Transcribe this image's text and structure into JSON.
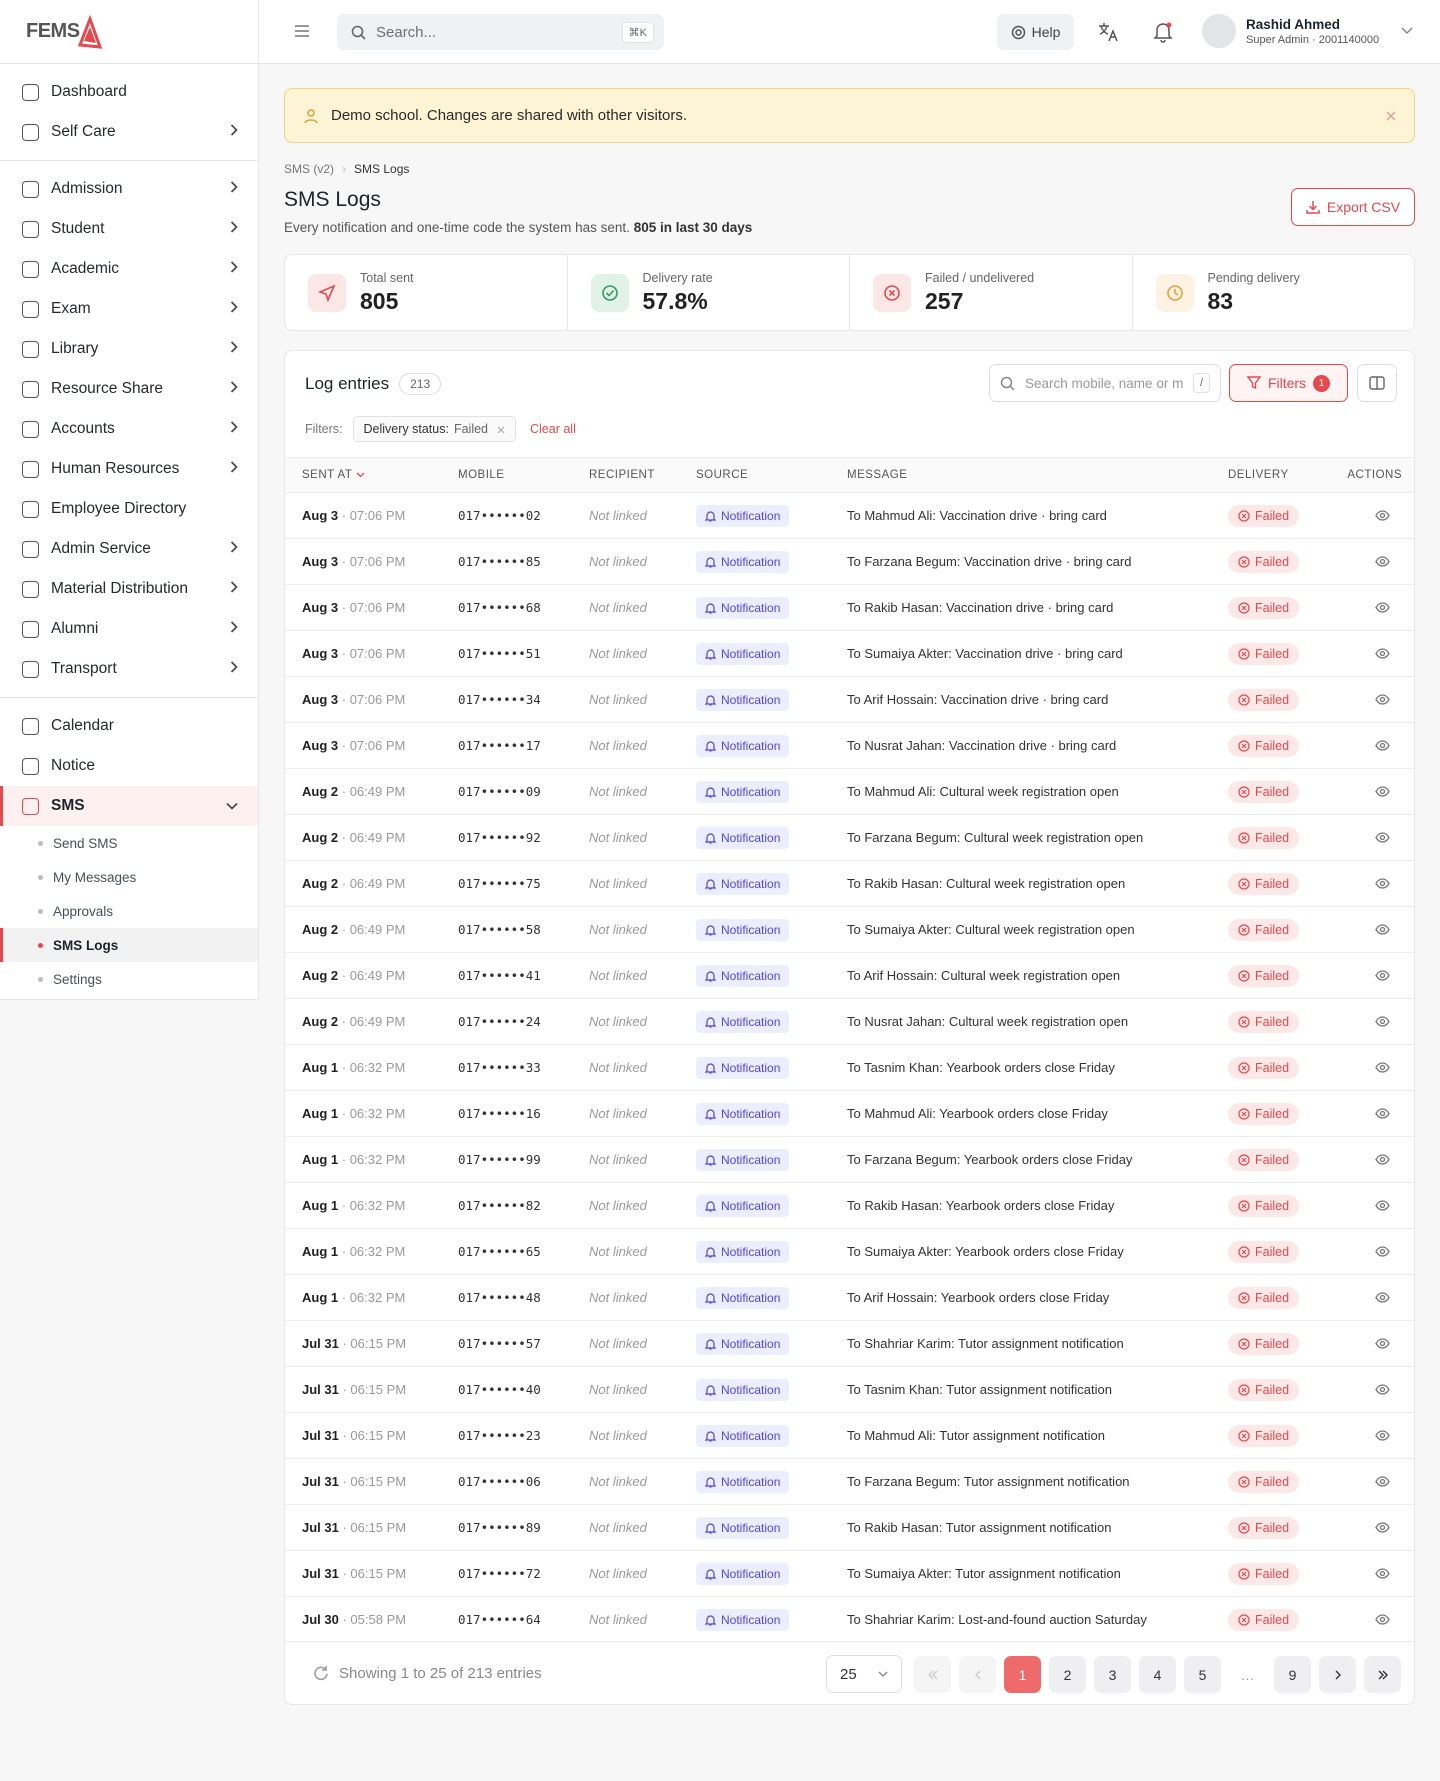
{
  "brand": "FEMS",
  "topbar": {
    "search_placeholder": "Search...",
    "search_shortcut": "⌘K",
    "help": "Help",
    "user_name": "Rashid Ahmed",
    "user_role": "Super Admin · 2001140000"
  },
  "sidebar": {
    "groups": [
      {
        "items": [
          {
            "label": "Dashboard",
            "expandable": false
          },
          {
            "label": "Self Care",
            "expandable": true
          }
        ]
      },
      {
        "items": [
          {
            "label": "Admission",
            "expandable": true
          },
          {
            "label": "Student",
            "expandable": true
          },
          {
            "label": "Academic",
            "expandable": true
          },
          {
            "label": "Exam",
            "expandable": true
          },
          {
            "label": "Library",
            "expandable": true
          },
          {
            "label": "Resource Share",
            "expandable": true
          },
          {
            "label": "Accounts",
            "expandable": true
          },
          {
            "label": "Human Resources",
            "expandable": true
          },
          {
            "label": "Employee Directory",
            "expandable": false
          },
          {
            "label": "Admin Service",
            "expandable": true
          },
          {
            "label": "Material Distribution",
            "expandable": true
          },
          {
            "label": "Alumni",
            "expandable": true
          },
          {
            "label": "Transport",
            "expandable": true
          }
        ]
      },
      {
        "items": [
          {
            "label": "Calendar",
            "expandable": false
          },
          {
            "label": "Notice",
            "expandable": false
          },
          {
            "label": "SMS",
            "expandable": true,
            "expanded": true,
            "active": true,
            "children": [
              {
                "label": "Send SMS",
                "active": false
              },
              {
                "label": "My Messages",
                "active": false
              },
              {
                "label": "Approvals",
                "active": false
              },
              {
                "label": "SMS Logs",
                "active": true
              },
              {
                "label": "Settings",
                "active": false
              }
            ]
          }
        ]
      }
    ]
  },
  "banner": "Demo school. Changes are shared with other visitors.",
  "breadcrumb": [
    "SMS (v2)",
    "SMS Logs"
  ],
  "header": {
    "title": "SMS Logs",
    "subtitle": "Every notification and one-time code the system has sent.",
    "subtitle_strong": "805 in last 30 days",
    "export": "Export CSV"
  },
  "stats": [
    {
      "label": "Total sent",
      "value": "805",
      "color": "#e5484d"
    },
    {
      "label": "Delivery rate",
      "value": "57.8%",
      "color": "#2f9e5b"
    },
    {
      "label": "Failed / undelivered",
      "value": "257",
      "color": "#e5484d"
    },
    {
      "label": "Pending delivery",
      "value": "83",
      "color": "#f0a030"
    }
  ],
  "log": {
    "title": "Log entries",
    "count": 213,
    "search_placeholder": "Search mobile, name or m",
    "search_shortcut": "/",
    "filters_button": "Filters",
    "filters_count": 1,
    "filters_label": "Filters:",
    "chip_key": "Delivery status:",
    "chip_value": "Failed",
    "clear": "Clear all",
    "columns": [
      "SENT AT",
      "MOBILE",
      "RECIPIENT",
      "SOURCE",
      "MESSAGE",
      "DELIVERY",
      "ACTIONS"
    ],
    "rows": [
      {
        "date": "Aug 3",
        "time": "07:06 PM",
        "mobile": "017••••••02",
        "recipient": "Not linked",
        "source": "Notification",
        "message": "To Mahmud Ali: Vaccination drive · bring card",
        "delivery": "Failed"
      },
      {
        "date": "Aug 3",
        "time": "07:06 PM",
        "mobile": "017••••••85",
        "recipient": "Not linked",
        "source": "Notification",
        "message": "To Farzana Begum: Vaccination drive · bring card",
        "delivery": "Failed"
      },
      {
        "date": "Aug 3",
        "time": "07:06 PM",
        "mobile": "017••••••68",
        "recipient": "Not linked",
        "source": "Notification",
        "message": "To Rakib Hasan: Vaccination drive · bring card",
        "delivery": "Failed"
      },
      {
        "date": "Aug 3",
        "time": "07:06 PM",
        "mobile": "017••••••51",
        "recipient": "Not linked",
        "source": "Notification",
        "message": "To Sumaiya Akter: Vaccination drive · bring card",
        "delivery": "Failed"
      },
      {
        "date": "Aug 3",
        "time": "07:06 PM",
        "mobile": "017••••••34",
        "recipient": "Not linked",
        "source": "Notification",
        "message": "To Arif Hossain: Vaccination drive · bring card",
        "delivery": "Failed"
      },
      {
        "date": "Aug 3",
        "time": "07:06 PM",
        "mobile": "017••••••17",
        "recipient": "Not linked",
        "source": "Notification",
        "message": "To Nusrat Jahan: Vaccination drive · bring card",
        "delivery": "Failed"
      },
      {
        "date": "Aug 2",
        "time": "06:49 PM",
        "mobile": "017••••••09",
        "recipient": "Not linked",
        "source": "Notification",
        "message": "To Mahmud Ali: Cultural week registration open",
        "delivery": "Failed"
      },
      {
        "date": "Aug 2",
        "time": "06:49 PM",
        "mobile": "017••••••92",
        "recipient": "Not linked",
        "source": "Notification",
        "message": "To Farzana Begum: Cultural week registration open",
        "delivery": "Failed"
      },
      {
        "date": "Aug 2",
        "time": "06:49 PM",
        "mobile": "017••••••75",
        "recipient": "Not linked",
        "source": "Notification",
        "message": "To Rakib Hasan: Cultural week registration open",
        "delivery": "Failed"
      },
      {
        "date": "Aug 2",
        "time": "06:49 PM",
        "mobile": "017••••••58",
        "recipient": "Not linked",
        "source": "Notification",
        "message": "To Sumaiya Akter: Cultural week registration open",
        "delivery": "Failed"
      },
      {
        "date": "Aug 2",
        "time": "06:49 PM",
        "mobile": "017••••••41",
        "recipient": "Not linked",
        "source": "Notification",
        "message": "To Arif Hossain: Cultural week registration open",
        "delivery": "Failed"
      },
      {
        "date": "Aug 2",
        "time": "06:49 PM",
        "mobile": "017••••••24",
        "recipient": "Not linked",
        "source": "Notification",
        "message": "To Nusrat Jahan: Cultural week registration open",
        "delivery": "Failed"
      },
      {
        "date": "Aug 1",
        "time": "06:32 PM",
        "mobile": "017••••••33",
        "recipient": "Not linked",
        "source": "Notification",
        "message": "To Tasnim Khan: Yearbook orders close Friday",
        "delivery": "Failed"
      },
      {
        "date": "Aug 1",
        "time": "06:32 PM",
        "mobile": "017••••••16",
        "recipient": "Not linked",
        "source": "Notification",
        "message": "To Mahmud Ali: Yearbook orders close Friday",
        "delivery": "Failed"
      },
      {
        "date": "Aug 1",
        "time": "06:32 PM",
        "mobile": "017••••••99",
        "recipient": "Not linked",
        "source": "Notification",
        "message": "To Farzana Begum: Yearbook orders close Friday",
        "delivery": "Failed"
      },
      {
        "date": "Aug 1",
        "time": "06:32 PM",
        "mobile": "017••••••82",
        "recipient": "Not linked",
        "source": "Notification",
        "message": "To Rakib Hasan: Yearbook orders close Friday",
        "delivery": "Failed"
      },
      {
        "date": "Aug 1",
        "time": "06:32 PM",
        "mobile": "017••••••65",
        "recipient": "Not linked",
        "source": "Notification",
        "message": "To Sumaiya Akter: Yearbook orders close Friday",
        "delivery": "Failed"
      },
      {
        "date": "Aug 1",
        "time": "06:32 PM",
        "mobile": "017••••••48",
        "recipient": "Not linked",
        "source": "Notification",
        "message": "To Arif Hossain: Yearbook orders close Friday",
        "delivery": "Failed"
      },
      {
        "date": "Jul 31",
        "time": "06:15 PM",
        "mobile": "017••••••57",
        "recipient": "Not linked",
        "source": "Notification",
        "message": "To Shahriar Karim: Tutor assignment notification",
        "delivery": "Failed"
      },
      {
        "date": "Jul 31",
        "time": "06:15 PM",
        "mobile": "017••••••40",
        "recipient": "Not linked",
        "source": "Notification",
        "message": "To Tasnim Khan: Tutor assignment notification",
        "delivery": "Failed"
      },
      {
        "date": "Jul 31",
        "time": "06:15 PM",
        "mobile": "017••••••23",
        "recipient": "Not linked",
        "source": "Notification",
        "message": "To Mahmud Ali: Tutor assignment notification",
        "delivery": "Failed"
      },
      {
        "date": "Jul 31",
        "time": "06:15 PM",
        "mobile": "017••••••06",
        "recipient": "Not linked",
        "source": "Notification",
        "message": "To Farzana Begum: Tutor assignment notification",
        "delivery": "Failed"
      },
      {
        "date": "Jul 31",
        "time": "06:15 PM",
        "mobile": "017••••••89",
        "recipient": "Not linked",
        "source": "Notification",
        "message": "To Rakib Hasan: Tutor assignment notification",
        "delivery": "Failed"
      },
      {
        "date": "Jul 31",
        "time": "06:15 PM",
        "mobile": "017••••••72",
        "recipient": "Not linked",
        "source": "Notification",
        "message": "To Sumaiya Akter: Tutor assignment notification",
        "delivery": "Failed"
      },
      {
        "date": "Jul 30",
        "time": "05:58 PM",
        "mobile": "017••••••64",
        "recipient": "Not linked",
        "source": "Notification",
        "message": "To Shahriar Karim: Lost-and-found auction Saturday",
        "delivery": "Failed"
      }
    ]
  },
  "footer": {
    "showing": "Showing 1 to 25 of 213 entries",
    "page_size": "25",
    "pages": [
      "1",
      "2",
      "3",
      "4",
      "5",
      "…",
      "9"
    ],
    "active_page": "1"
  }
}
